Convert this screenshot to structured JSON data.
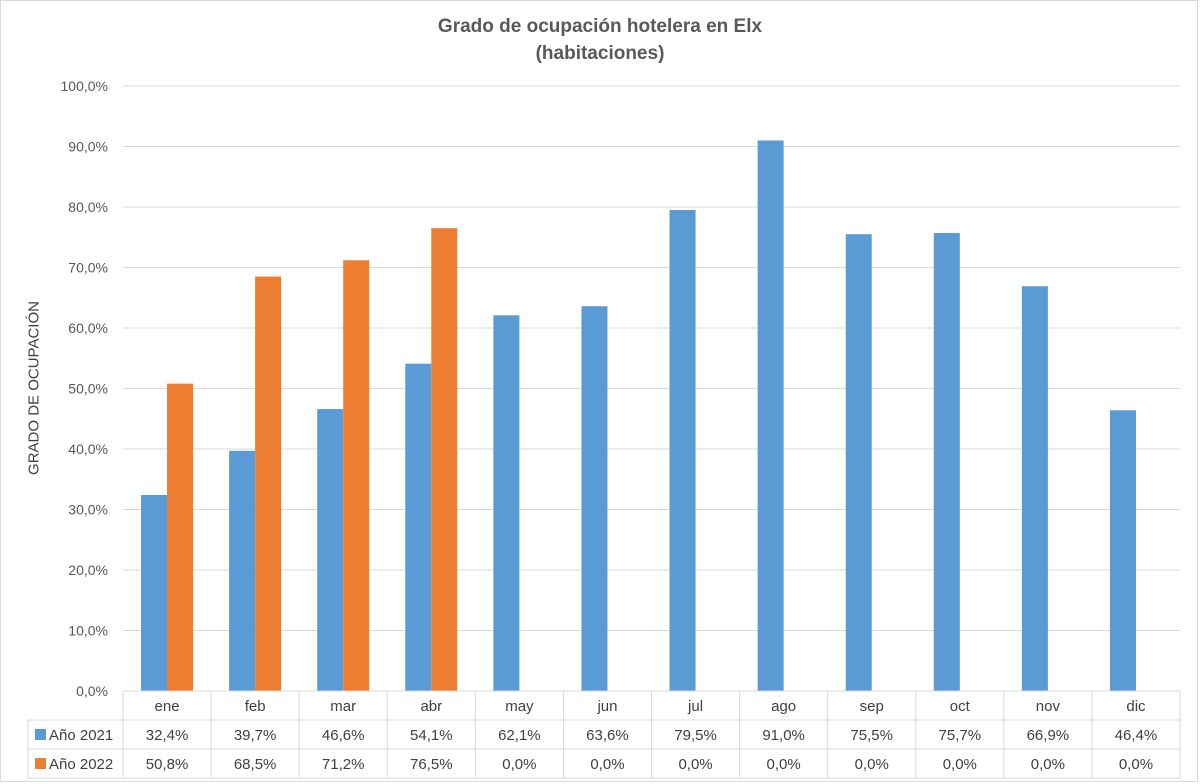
{
  "chart_data": {
    "type": "bar",
    "title": [
      "Grado de ocupación hotelera en Elx",
      "(habitaciones)"
    ],
    "ylabel": "GRADO DE OCUPACIÓN",
    "ylim": [
      0,
      100
    ],
    "y_ticks": [
      "0,0%",
      "10,0%",
      "20,0%",
      "30,0%",
      "40,0%",
      "50,0%",
      "60,0%",
      "70,0%",
      "80,0%",
      "90,0%",
      "100,0%"
    ],
    "grid": true,
    "legend": "data-table",
    "categories": [
      "ene",
      "feb",
      "mar",
      "abr",
      "may",
      "jun",
      "jul",
      "ago",
      "sep",
      "oct",
      "nov",
      "dic"
    ],
    "series": [
      {
        "name": "Año 2021",
        "color": "#5b9bd5",
        "values": [
          32.4,
          39.7,
          46.6,
          54.1,
          62.1,
          63.6,
          79.5,
          91.0,
          75.5,
          75.7,
          66.9,
          46.4
        ],
        "labels": [
          "32,4%",
          "39,7%",
          "46,6%",
          "54,1%",
          "62,1%",
          "63,6%",
          "79,5%",
          "91,0%",
          "75,5%",
          "75,7%",
          "66,9%",
          "46,4%"
        ]
      },
      {
        "name": "Año 2022",
        "color": "#ed7d31",
        "values": [
          50.8,
          68.5,
          71.2,
          76.5,
          0,
          0,
          0,
          0,
          0,
          0,
          0,
          0
        ],
        "labels": [
          "50,8%",
          "68,5%",
          "71,2%",
          "76,5%",
          "0,0%",
          "0,0%",
          "0,0%",
          "0,0%",
          "0,0%",
          "0,0%",
          "0,0%",
          "0,0%"
        ]
      }
    ]
  }
}
